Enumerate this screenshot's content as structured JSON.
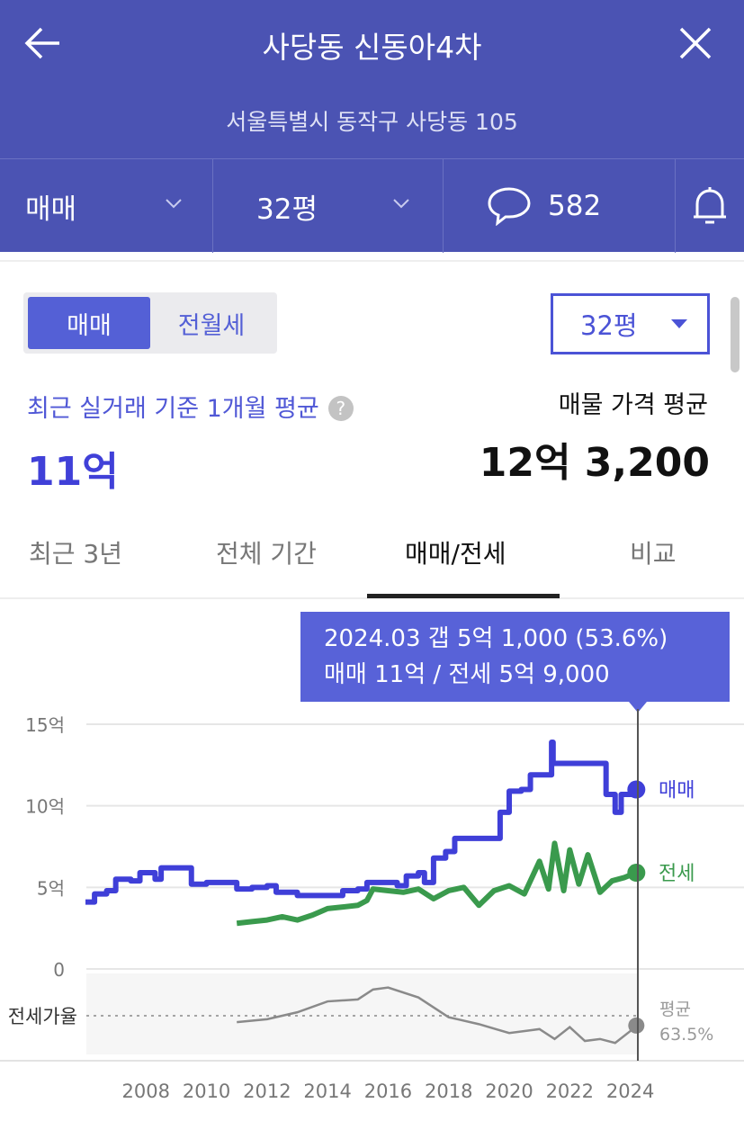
{
  "header": {
    "title": "사당동 신동아4차",
    "address": "서울특별시 동작구 사당동 105",
    "deal_type": "매매",
    "size": "32평",
    "comment_count": "582"
  },
  "controls": {
    "segments": [
      "매매",
      "전월세"
    ],
    "active_segment": "매매",
    "size_select": "32평"
  },
  "summary": {
    "recent_label": "최근 실거래 기준 1개월 평균",
    "recent_value": "11억",
    "listing_label": "매물 가격 평균",
    "listing_value": "12억 3,200"
  },
  "tabs": [
    {
      "label": "최근 3년"
    },
    {
      "label": "전체 기간"
    },
    {
      "label": "매매/전세",
      "active": true
    },
    {
      "label": "비교"
    }
  ],
  "tooltip": {
    "line1": "2024.03  갭 5억 1,000 (53.6%)",
    "line2": "매매 11억 / 전세 5억 9,000"
  },
  "colors": {
    "header": "#4b53b3",
    "sale": "#3f3fd8",
    "jeonse": "#3a9a4d",
    "ratio": "#8a8a8a",
    "accent": "#5460d6"
  },
  "chart_data": {
    "type": "line",
    "y_ticks": [
      "15억",
      "10억",
      "5억",
      "0"
    ],
    "y_tick_values": [
      15,
      10,
      5,
      0
    ],
    "ylim": [
      0,
      15
    ],
    "x_ticks": [
      "2008",
      "2010",
      "2012",
      "2014",
      "2016",
      "2018",
      "2020",
      "2022",
      "2024"
    ],
    "xlim": [
      2006,
      2024.25
    ],
    "grid": true,
    "series": [
      {
        "name": "매매",
        "color": "#3f3fd8",
        "points": [
          [
            2006.0,
            4.1
          ],
          [
            2006.3,
            4.6
          ],
          [
            2006.7,
            4.8
          ],
          [
            2007.0,
            5.5
          ],
          [
            2007.5,
            5.4
          ],
          [
            2007.8,
            5.9
          ],
          [
            2008.3,
            5.5
          ],
          [
            2008.5,
            6.2
          ],
          [
            2009.4,
            6.2
          ],
          [
            2009.5,
            5.2
          ],
          [
            2010.0,
            5.3
          ],
          [
            2010.5,
            5.3
          ],
          [
            2011.0,
            4.9
          ],
          [
            2011.5,
            5.0
          ],
          [
            2012.0,
            5.1
          ],
          [
            2012.3,
            4.7
          ],
          [
            2013.0,
            4.5
          ],
          [
            2014.0,
            4.5
          ],
          [
            2014.5,
            4.8
          ],
          [
            2015.0,
            4.9
          ],
          [
            2015.3,
            5.3
          ],
          [
            2015.8,
            5.3
          ],
          [
            2016.3,
            5.1
          ],
          [
            2016.6,
            5.7
          ],
          [
            2017.0,
            5.9
          ],
          [
            2017.2,
            5.3
          ],
          [
            2017.5,
            6.8
          ],
          [
            2017.9,
            7.2
          ],
          [
            2018.2,
            8.0
          ],
          [
            2019.5,
            8.0
          ],
          [
            2019.7,
            9.6
          ],
          [
            2020.0,
            10.9
          ],
          [
            2020.4,
            11.0
          ],
          [
            2020.7,
            11.9
          ],
          [
            2021.3,
            11.9
          ],
          [
            2021.4,
            13.9
          ],
          [
            2021.45,
            12.6
          ],
          [
            2023.0,
            12.6
          ],
          [
            2023.2,
            10.7
          ],
          [
            2023.5,
            9.6
          ],
          [
            2023.7,
            10.7
          ],
          [
            2024.2,
            11.0
          ]
        ]
      },
      {
        "name": "전세",
        "color": "#3a9a4d",
        "points": [
          [
            2011.0,
            2.8
          ],
          [
            2011.5,
            2.9
          ],
          [
            2012.0,
            3.0
          ],
          [
            2012.5,
            3.2
          ],
          [
            2013.0,
            3.0
          ],
          [
            2013.5,
            3.3
          ],
          [
            2014.0,
            3.7
          ],
          [
            2014.5,
            3.8
          ],
          [
            2015.0,
            3.9
          ],
          [
            2015.3,
            4.2
          ],
          [
            2015.5,
            4.9
          ],
          [
            2016.0,
            4.8
          ],
          [
            2016.5,
            4.7
          ],
          [
            2017.0,
            4.9
          ],
          [
            2017.5,
            4.3
          ],
          [
            2018.0,
            4.8
          ],
          [
            2018.5,
            5.0
          ],
          [
            2019.0,
            3.9
          ],
          [
            2019.5,
            4.8
          ],
          [
            2020.0,
            5.1
          ],
          [
            2020.5,
            4.6
          ],
          [
            2021.0,
            6.6
          ],
          [
            2021.3,
            4.9
          ],
          [
            2021.5,
            7.7
          ],
          [
            2021.8,
            4.8
          ],
          [
            2022.0,
            7.3
          ],
          [
            2022.3,
            5.2
          ],
          [
            2022.6,
            7.0
          ],
          [
            2023.0,
            4.7
          ],
          [
            2023.4,
            5.4
          ],
          [
            2023.8,
            5.6
          ],
          [
            2024.2,
            5.9
          ]
        ]
      }
    ],
    "ratio": {
      "label": "전세가율",
      "avg_label": "평균",
      "avg_value": "63.5%",
      "avg": 63.5,
      "ylim": [
        25,
        105
      ],
      "points": [
        [
          2011.0,
          57
        ],
        [
          2012.0,
          60
        ],
        [
          2013.0,
          67
        ],
        [
          2014.0,
          78
        ],
        [
          2015.0,
          80
        ],
        [
          2015.5,
          90
        ],
        [
          2016.0,
          92
        ],
        [
          2017.0,
          82
        ],
        [
          2018.0,
          62
        ],
        [
          2019.0,
          55
        ],
        [
          2020.0,
          46
        ],
        [
          2021.0,
          50
        ],
        [
          2021.5,
          40
        ],
        [
          2022.0,
          52
        ],
        [
          2022.5,
          38
        ],
        [
          2023.0,
          40
        ],
        [
          2023.5,
          36
        ],
        [
          2024.0,
          48
        ],
        [
          2024.2,
          53.6
        ]
      ]
    }
  }
}
